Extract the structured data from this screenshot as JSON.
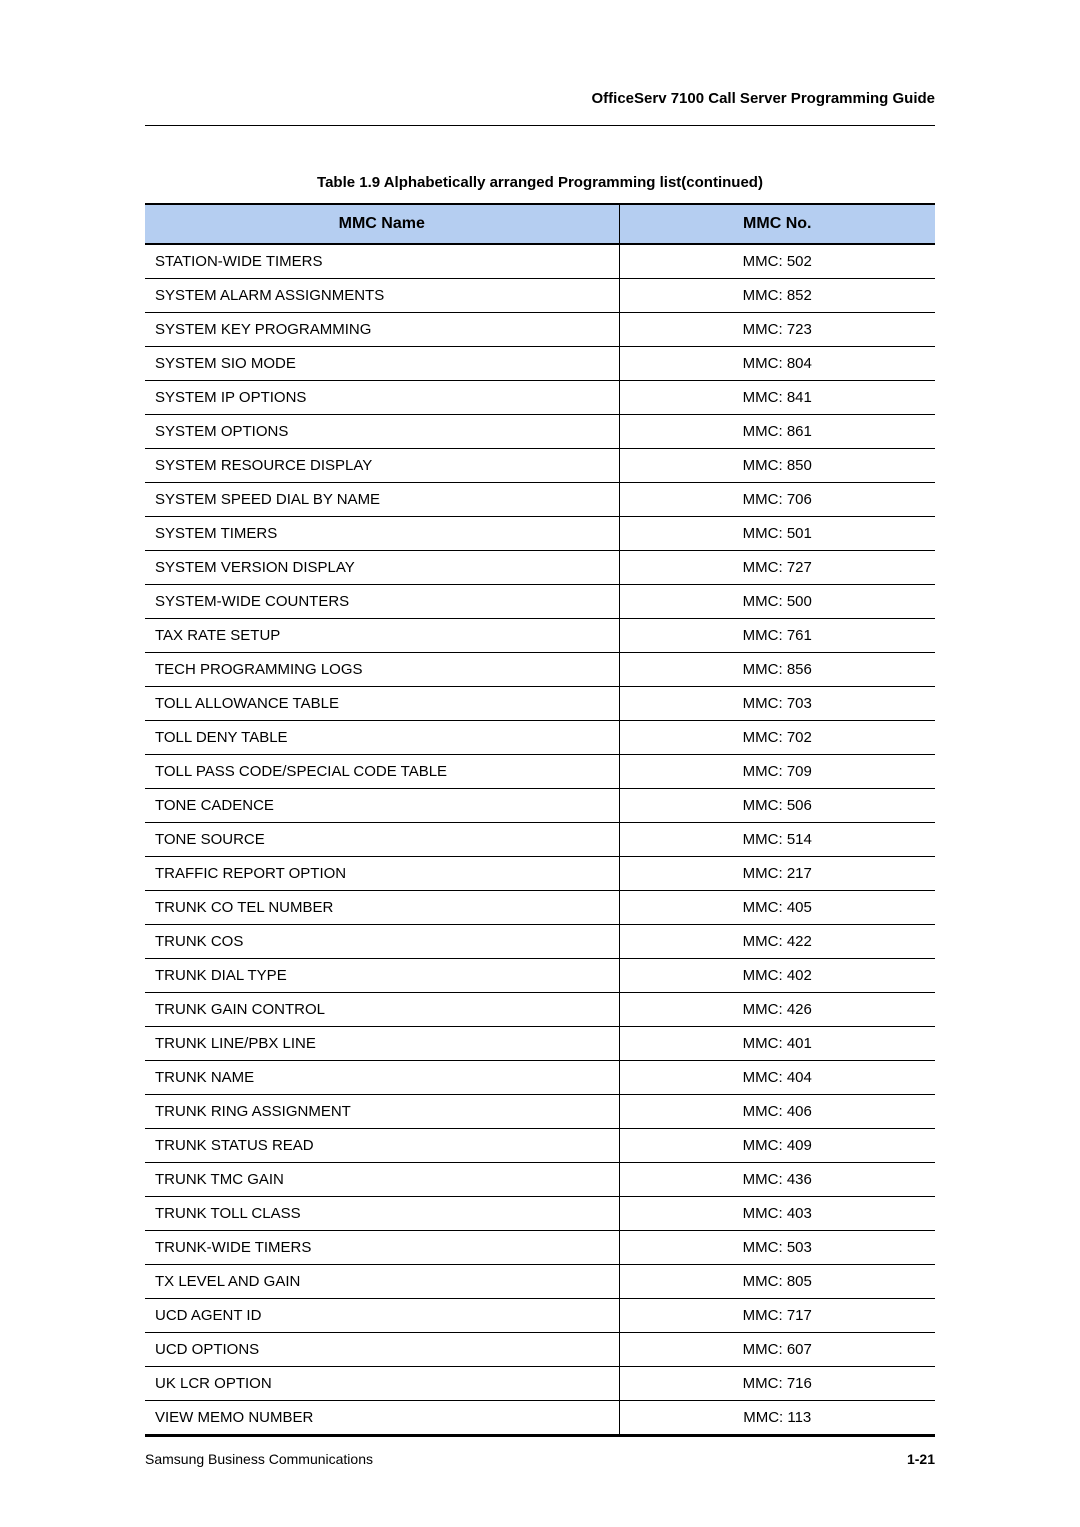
{
  "header": {
    "title": "OfficeServ 7100 Call Server Programming Guide"
  },
  "table": {
    "caption": "Table 1.9   Alphabetically arranged Programming list(continued)",
    "columns": {
      "name": "MMC Name",
      "no": "MMC No."
    },
    "rows": [
      {
        "name": "STATION-WIDE TIMERS",
        "no": "MMC: 502"
      },
      {
        "name": "SYSTEM ALARM ASSIGNMENTS",
        "no": "MMC: 852"
      },
      {
        "name": "SYSTEM KEY PROGRAMMING",
        "no": "MMC: 723"
      },
      {
        "name": "SYSTEM SIO MODE",
        "no": "MMC: 804"
      },
      {
        "name": "SYSTEM IP OPTIONS",
        "no": "MMC: 841"
      },
      {
        "name": "SYSTEM OPTIONS",
        "no": "MMC: 861"
      },
      {
        "name": "SYSTEM RESOURCE DISPLAY",
        "no": "MMC: 850"
      },
      {
        "name": "SYSTEM SPEED DIAL BY NAME",
        "no": "MMC: 706"
      },
      {
        "name": "SYSTEM TIMERS",
        "no": "MMC: 501"
      },
      {
        "name": "SYSTEM VERSION DISPLAY",
        "no": "MMC: 727"
      },
      {
        "name": "SYSTEM-WIDE COUNTERS",
        "no": "MMC: 500"
      },
      {
        "name": "TAX RATE SETUP",
        "no": "MMC: 761"
      },
      {
        "name": "TECH PROGRAMMING LOGS",
        "no": "MMC: 856"
      },
      {
        "name": "TOLL ALLOWANCE TABLE",
        "no": "MMC: 703"
      },
      {
        "name": "TOLL DENY TABLE",
        "no": "MMC: 702"
      },
      {
        "name": "TOLL PASS CODE/SPECIAL CODE TABLE",
        "no": "MMC: 709"
      },
      {
        "name": "TONE CADENCE",
        "no": "MMC: 506"
      },
      {
        "name": "TONE SOURCE",
        "no": "MMC: 514"
      },
      {
        "name": "TRAFFIC REPORT OPTION",
        "no": "MMC: 217"
      },
      {
        "name": "TRUNK CO TEL NUMBER",
        "no": "MMC: 405"
      },
      {
        "name": "TRUNK COS",
        "no": "MMC: 422"
      },
      {
        "name": "TRUNK DIAL TYPE",
        "no": "MMC: 402"
      },
      {
        "name": "TRUNK GAIN CONTROL",
        "no": "MMC: 426"
      },
      {
        "name": "TRUNK LINE/PBX LINE",
        "no": "MMC: 401"
      },
      {
        "name": "TRUNK NAME",
        "no": "MMC: 404"
      },
      {
        "name": "TRUNK RING ASSIGNMENT",
        "no": "MMC: 406"
      },
      {
        "name": "TRUNK STATUS READ",
        "no": "MMC: 409"
      },
      {
        "name": "TRUNK TMC GAIN",
        "no": "MMC: 436"
      },
      {
        "name": "TRUNK TOLL CLASS",
        "no": "MMC: 403"
      },
      {
        "name": "TRUNK-WIDE TIMERS",
        "no": "MMC: 503"
      },
      {
        "name": "TX LEVEL AND GAIN",
        "no": "MMC: 805"
      },
      {
        "name": "UCD AGENT ID",
        "no": "MMC: 717"
      },
      {
        "name": "UCD OPTIONS",
        "no": "MMC: 607"
      },
      {
        "name": "UK LCR OPTION",
        "no": "MMC: 716"
      },
      {
        "name": "VIEW MEMO NUMBER",
        "no": "MMC: 113"
      }
    ]
  },
  "footer": {
    "left": "Samsung Business Communications",
    "right": "1-21"
  }
}
